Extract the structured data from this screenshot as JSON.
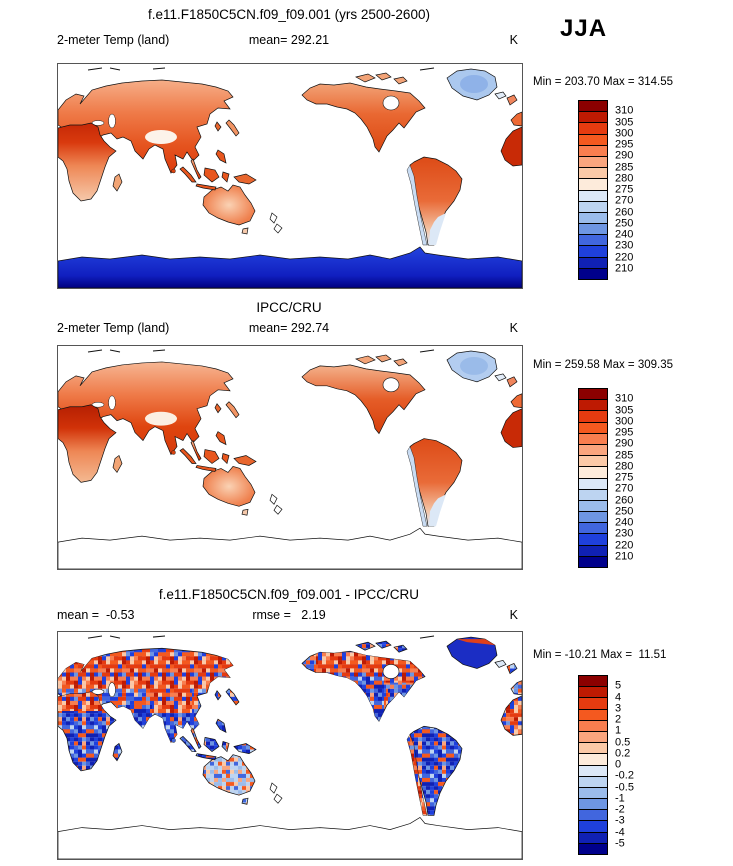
{
  "header": {
    "title": "f.e11.F1850C5CN.f09_f09.001 (yrs 2500-2600)",
    "season": "JJA"
  },
  "palette_top_to_bottom": [
    "#8B0000",
    "#BE1A02",
    "#E53B10",
    "#F4591F",
    "#F97E4F",
    "#FAA57E",
    "#FBC9A7",
    "#FDEBDB",
    "#DCE8F7",
    "#BDD4F1",
    "#9BBCEB",
    "#6E96E3",
    "#4166DE",
    "#1F40DC",
    "#1021B4",
    "#00008B"
  ],
  "panels": [
    {
      "id": "model",
      "variable": "2-meter Temp (land)",
      "mean_label": "mean= 292.21",
      "units": "K",
      "minmax": "Min = 203.70 Max = 314.55",
      "colorbar_ticks": [
        "310",
        "305",
        "300",
        "295",
        "290",
        "285",
        "280",
        "275",
        "270",
        "260",
        "250",
        "240",
        "230",
        "220",
        "210"
      ]
    },
    {
      "id": "obs",
      "title": "IPCC/CRU",
      "variable": "2-meter Temp (land)",
      "mean_label": "mean= 292.74",
      "units": "K",
      "minmax": "Min = 259.58 Max = 309.35",
      "colorbar_ticks": [
        "310",
        "305",
        "300",
        "295",
        "290",
        "285",
        "280",
        "275",
        "270",
        "260",
        "250",
        "240",
        "230",
        "220",
        "210"
      ]
    },
    {
      "id": "diff",
      "title": "f.e11.F1850C5CN.f09_f09.001 - IPCC/CRU",
      "mean_label": "mean =  -0.53",
      "rmse_label": "rmse =   2.19",
      "units": "K",
      "minmax": "Min = -10.21 Max =  11.51",
      "colorbar_ticks": [
        "5",
        "4",
        "3",
        "2",
        "1",
        "0.5",
        "0.2",
        "0",
        "-0.2",
        "-0.5",
        "-1",
        "-2",
        "-3",
        "-4",
        "-5"
      ]
    }
  ],
  "chart_data": [
    {
      "type": "heatmap",
      "title": "f.e11.F1850C5CN.f09_f09.001 (yrs 2500-2600)",
      "season": "JJA",
      "variable": "2-meter Temp (land)",
      "units": "K",
      "mean": 292.21,
      "min": 203.7,
      "max": 314.55,
      "colorbar_levels": [
        210,
        220,
        230,
        240,
        250,
        260,
        270,
        275,
        280,
        285,
        290,
        295,
        300,
        305,
        310
      ],
      "projection": "global cylindrical equidistant, Pacific-centered (0E-360E), oceans masked white",
      "pattern_notes": "model JJA land temperature: deep reds over Sahara/Arabia/India, salmon over Siberia and Europe, near-white Tibetan Plateau, light blue Greenland and Andes/Patagonia, dark blue Antarctica"
    },
    {
      "type": "heatmap",
      "title": "IPCC/CRU",
      "season": "JJA",
      "variable": "2-meter Temp (land)",
      "units": "K",
      "mean": 292.74,
      "min": 259.58,
      "max": 309.35,
      "colorbar_levels": [
        210,
        220,
        230,
        240,
        250,
        260,
        270,
        275,
        280,
        285,
        290,
        295,
        300,
        305,
        310
      ],
      "projection": "global cylindrical equidistant, Pacific-centered (0E-360E), oceans masked white",
      "pattern_notes": "observed JJA land temperature: same warm pattern as model; Greenland light blue; Antarctica has no data (outline only)"
    },
    {
      "type": "heatmap",
      "title": "f.e11.F1850C5CN.f09_f09.001 - IPCC/CRU",
      "season": "JJA",
      "variable": "2-meter Temp (land) difference",
      "units": "K",
      "mean": -0.53,
      "rmse": 2.19,
      "min": -10.21,
      "max": 11.51,
      "colorbar_levels": [
        -5,
        -4,
        -3,
        -2,
        -1,
        -0.5,
        -0.2,
        0,
        0.2,
        0.5,
        1,
        2,
        3,
        4,
        5
      ],
      "projection": "global cylindrical equidistant, Pacific-centered (0E-360E), oceans masked white",
      "pattern_notes": "speckled model-minus-obs bias: warm (red) band across northern Eurasia, central Asia and Canada; cool (blue) over Africa, India, Greenland, western North America and South America; Antarctica outline only"
    }
  ]
}
